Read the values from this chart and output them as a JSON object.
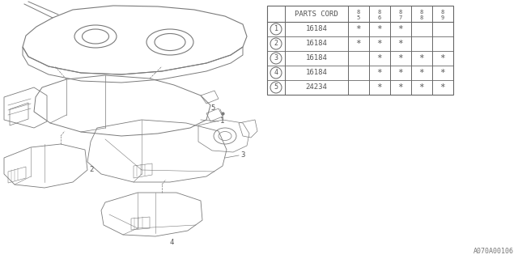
{
  "bg_color": "#ffffff",
  "diagram_code": "A070A00106",
  "table": {
    "header_label": "PARTS CORD",
    "year_cols": [
      "85",
      "86",
      "87",
      "88",
      "89"
    ],
    "rows": [
      {
        "num": "1",
        "part": "16184",
        "marks": [
          true,
          true,
          true,
          false,
          false
        ]
      },
      {
        "num": "2",
        "part": "16184",
        "marks": [
          true,
          true,
          true,
          false,
          false
        ]
      },
      {
        "num": "3",
        "part": "16184",
        "marks": [
          false,
          true,
          true,
          true,
          true
        ]
      },
      {
        "num": "4",
        "part": "16184",
        "marks": [
          false,
          true,
          true,
          true,
          true
        ]
      },
      {
        "num": "5",
        "part": "24234",
        "marks": [
          false,
          true,
          true,
          true,
          true
        ]
      }
    ]
  }
}
